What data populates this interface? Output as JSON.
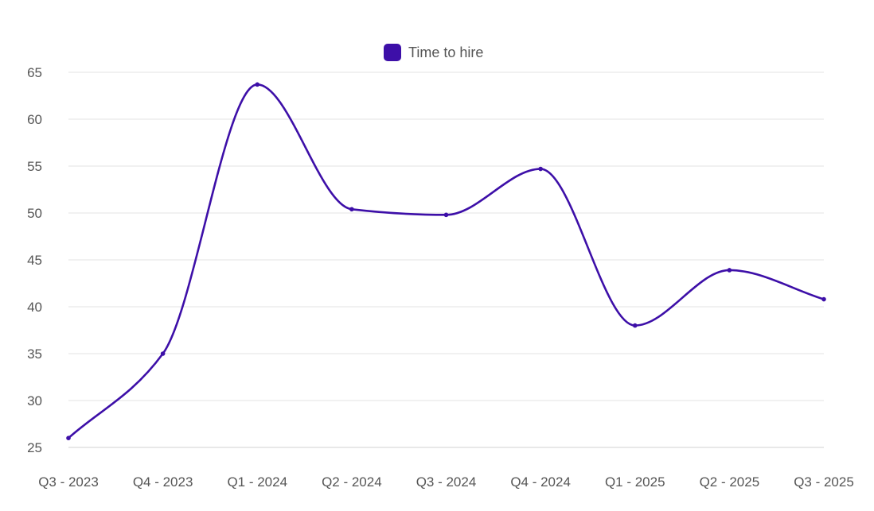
{
  "chart_data": {
    "type": "line",
    "title": "",
    "xlabel": "",
    "ylabel": "",
    "categories": [
      "Q3 - 2023",
      "Q4 - 2023",
      "Q1 - 2024",
      "Q2 - 2024",
      "Q3 - 2024",
      "Q4 - 2024",
      "Q1 - 2025",
      "Q2 - 2025",
      "Q3 - 2025"
    ],
    "series": [
      {
        "name": "Time to hire",
        "values": [
          26,
          35,
          63.7,
          50.4,
          49.8,
          54.7,
          38,
          43.9,
          40.8
        ],
        "color": "#3d0fa8"
      }
    ],
    "ylim": [
      25,
      65
    ],
    "yticks": [
      25,
      30,
      35,
      40,
      45,
      50,
      55,
      60,
      65
    ],
    "grid": true,
    "legend_position": "top-center",
    "curve": "smooth"
  }
}
